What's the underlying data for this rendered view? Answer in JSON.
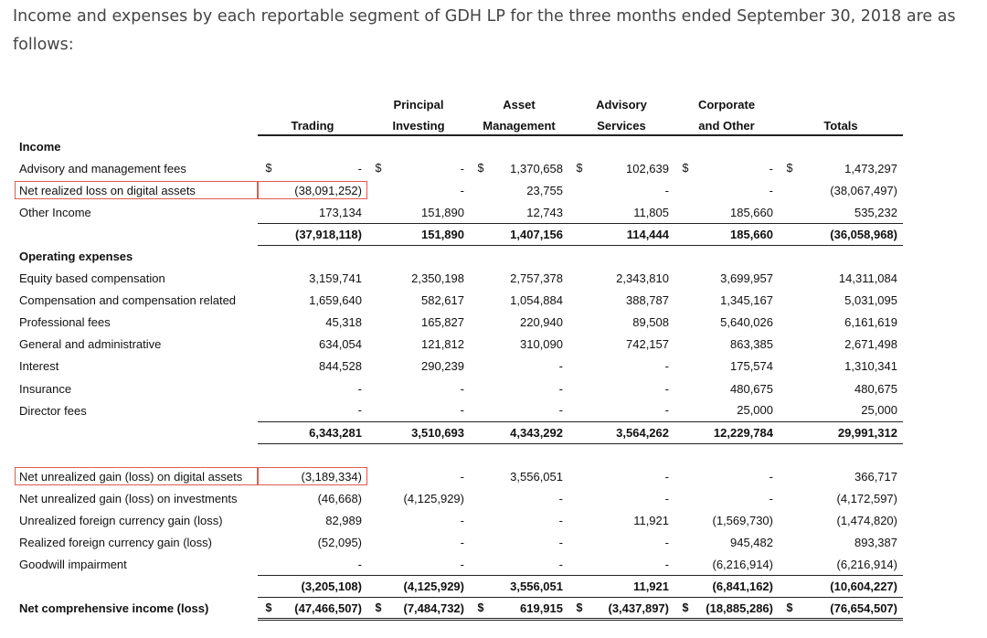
{
  "intro": "Income and expenses by each reportable segment of GDH LP for the three months ended September 30, 2018 are as follows:",
  "headers": {
    "line1": [
      "",
      "Principal",
      "Asset",
      "Advisory",
      "Corporate",
      ""
    ],
    "line2": [
      "Trading",
      "Investing",
      "Management",
      "Services",
      "and Other",
      "Totals"
    ]
  },
  "sections": {
    "income": "Income",
    "operating": "Operating expenses"
  },
  "rows": {
    "advisory_fees": {
      "label": "Advisory and management fees",
      "cur": "$",
      "vals": [
        "-",
        "-",
        "1,370,658",
        "102,639",
        "-",
        "1,473,297"
      ]
    },
    "net_realized": {
      "label": "Net realized loss on digital assets",
      "vals": [
        "(38,091,252)",
        "-",
        "23,755",
        "-",
        "-",
        "(38,067,497)"
      ]
    },
    "other_income": {
      "label": "Other Income",
      "vals": [
        "173,134",
        "151,890",
        "12,743",
        "11,805",
        "185,660",
        "535,232"
      ]
    },
    "income_total": {
      "vals": [
        "(37,918,118)",
        "151,890",
        "1,407,156",
        "114,444",
        "185,660",
        "(36,058,968)"
      ]
    },
    "equity_comp": {
      "label": "Equity based compensation",
      "vals": [
        "3,159,741",
        "2,350,198",
        "2,757,378",
        "2,343,810",
        "3,699,957",
        "14,311,084"
      ]
    },
    "comp_related": {
      "label": "Compensation and compensation related",
      "vals": [
        "1,659,640",
        "582,617",
        "1,054,884",
        "388,787",
        "1,345,167",
        "5,031,095"
      ]
    },
    "professional": {
      "label": "Professional fees",
      "vals": [
        "45,318",
        "165,827",
        "220,940",
        "89,508",
        "5,640,026",
        "6,161,619"
      ]
    },
    "general_admin": {
      "label": "General and administrative",
      "vals": [
        "634,054",
        "121,812",
        "310,090",
        "742,157",
        "863,385",
        "2,671,498"
      ]
    },
    "interest": {
      "label": "Interest",
      "vals": [
        "844,528",
        "290,239",
        "-",
        "-",
        "175,574",
        "1,310,341"
      ]
    },
    "insurance": {
      "label": "Insurance",
      "vals": [
        "-",
        "-",
        "-",
        "-",
        "480,675",
        "480,675"
      ]
    },
    "director_fees": {
      "label": "Director fees",
      "vals": [
        "-",
        "-",
        "-",
        "-",
        "25,000",
        "25,000"
      ]
    },
    "opex_total": {
      "vals": [
        "6,343,281",
        "3,510,693",
        "4,343,292",
        "3,564,262",
        "12,229,784",
        "29,991,312"
      ]
    },
    "unrealized_digital": {
      "label": "Net unrealized gain (loss) on digital assets",
      "vals": [
        "(3,189,334)",
        "-",
        "3,556,051",
        "-",
        "-",
        "366,717"
      ]
    },
    "unrealized_invest": {
      "label": "Net unrealized gain (loss) on investments",
      "vals": [
        "(46,668)",
        "(4,125,929)",
        "-",
        "-",
        "-",
        "(4,172,597)"
      ]
    },
    "unrealized_fx": {
      "label": "Unrealized foreign currency gain (loss)",
      "vals": [
        "82,989",
        "-",
        "-",
        "11,921",
        "(1,569,730)",
        "(1,474,820)"
      ]
    },
    "realized_fx": {
      "label": "Realized foreign currency gain (loss)",
      "vals": [
        "(52,095)",
        "-",
        "-",
        "-",
        "945,482",
        "893,387"
      ]
    },
    "goodwill": {
      "label": "Goodwill impairment",
      "vals": [
        "-",
        "-",
        "-",
        "-",
        "(6,216,914)",
        "(6,216,914)"
      ]
    },
    "other_total": {
      "vals": [
        "(3,205,108)",
        "(4,125,929)",
        "3,556,051",
        "11,921",
        "(6,841,162)",
        "(10,604,227)"
      ]
    },
    "net_comprehensive": {
      "label": "Net comprehensive income (loss)",
      "cur": "$",
      "vals": [
        "(47,466,507)",
        "(7,484,732)",
        "619,915",
        "(3,437,897)",
        "(18,885,286)",
        "(76,654,507)"
      ]
    }
  },
  "highlight_color": "#e05a4e"
}
